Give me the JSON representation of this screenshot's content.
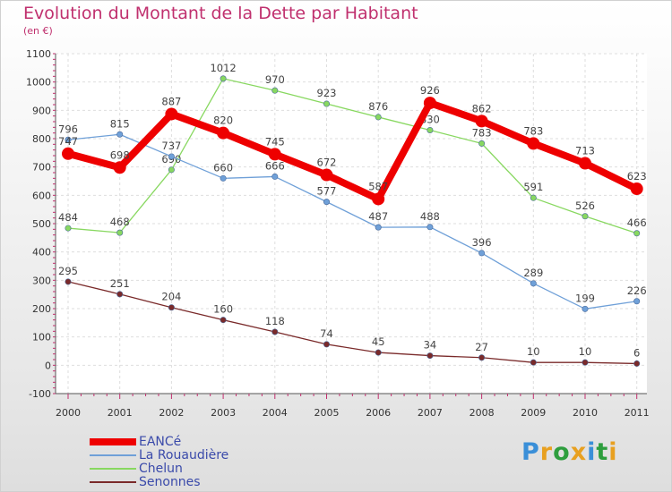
{
  "title": "Evolution du Montant de la Dette par Habitant",
  "subtitle": "(en €)",
  "logo": {
    "text": "Proxiti",
    "letter_colors": [
      "#3a8fd8",
      "#e8a020",
      "#2e9e3e",
      "#e8a020",
      "#3a8fd8",
      "#2e9e3e",
      "#e8a020"
    ]
  },
  "chart_data": {
    "type": "line",
    "x": [
      "2000",
      "2001",
      "2002",
      "2003",
      "2004",
      "2005",
      "2006",
      "2007",
      "2008",
      "2009",
      "2010",
      "2011"
    ],
    "ylim": [
      -100,
      1100
    ],
    "yticks": [
      -100,
      0,
      100,
      200,
      300,
      400,
      500,
      600,
      700,
      800,
      900,
      1000,
      1100
    ],
    "grid": true,
    "legend_position": "bottom-left",
    "series": [
      {
        "name": "EANCé",
        "color": "#ee0000",
        "values": [
          747,
          698,
          887,
          820,
          745,
          672,
          587,
          926,
          862,
          783,
          713,
          623
        ]
      },
      {
        "name": "La Rouaudière",
        "color": "#6fa0d8",
        "values": [
          796,
          815,
          737,
          660,
          666,
          577,
          487,
          488,
          396,
          289,
          199,
          226
        ]
      },
      {
        "name": "Chelun",
        "color": "#88d860",
        "values": [
          484,
          468,
          690,
          1012,
          970,
          923,
          876,
          830,
          783,
          591,
          526,
          466
        ]
      },
      {
        "name": "Senonnes",
        "color": "#7a2a2a",
        "values": [
          295,
          251,
          204,
          160,
          118,
          74,
          45,
          34,
          27,
          10,
          10,
          6
        ]
      }
    ]
  }
}
